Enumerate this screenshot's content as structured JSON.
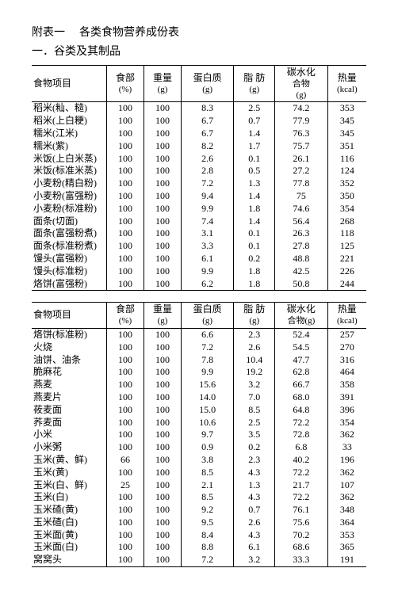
{
  "title1": "附表一",
  "title2": "各类食物营养成份表",
  "subtitle": "一．谷类及其制品",
  "columns1": [
    {
      "l1": "食物项目",
      "l2": ""
    },
    {
      "l1": "食部",
      "l2": "(%)"
    },
    {
      "l1": "重量",
      "l2": "(g)"
    },
    {
      "l1": "蛋白质",
      "l2": "(g)"
    },
    {
      "l1": "脂 肪",
      "l2": "(g)"
    },
    {
      "l1": "碳水化",
      "l2": "合物",
      "l3": "(g)"
    },
    {
      "l1": "热量",
      "l2": "(kcal)"
    }
  ],
  "columns2": [
    {
      "l1": "食物项目",
      "l2": ""
    },
    {
      "l1": "食部",
      "l2": "(%)"
    },
    {
      "l1": "重量",
      "l2": "(g)"
    },
    {
      "l1": "蛋白质",
      "l2": "(g)"
    },
    {
      "l1": "脂 肪",
      "l2": "(g)"
    },
    {
      "l1": "碳水化",
      "l2": "合物(g)"
    },
    {
      "l1": "热量",
      "l2": "(kcal)"
    }
  ],
  "rows1": [
    [
      "稻米(籼、糙)",
      "100",
      "100",
      "8.3",
      "2.5",
      "74.2",
      "353"
    ],
    [
      "稻米(上白粳)",
      "100",
      "100",
      "6.7",
      "0.7",
      "77.9",
      "345"
    ],
    [
      "糯米(江米)",
      "100",
      "100",
      "6.7",
      "1.4",
      "76.3",
      "345"
    ],
    [
      "糯米(紫)",
      "100",
      "100",
      "8.2",
      "1.7",
      "75.7",
      "351"
    ],
    [
      "米饭(上白米蒸)",
      "100",
      "100",
      "2.6",
      "0.1",
      "26.1",
      "116"
    ],
    [
      "米饭(标准米蒸)",
      "100",
      "100",
      "2.8",
      "0.5",
      "27.2",
      "124"
    ],
    [
      "小麦粉(精白粉)",
      "100",
      "100",
      "7.2",
      "1.3",
      "77.8",
      "352"
    ],
    [
      "小麦粉(富强粉)",
      "100",
      "100",
      "9.4",
      "1.4",
      "75",
      "350"
    ],
    [
      "小麦粉(标准粉)",
      "100",
      "100",
      "9.9",
      "1.8",
      "74.6",
      "354"
    ],
    [
      "面条(切面)",
      "100",
      "100",
      "7.4",
      "1.4",
      "56.4",
      "268"
    ],
    [
      "面条(富强粉煮)",
      "100",
      "100",
      "3.1",
      "0.1",
      "26.3",
      "118"
    ],
    [
      "面条(标准粉煮)",
      "100",
      "100",
      "3.3",
      "0.1",
      "27.8",
      "125"
    ],
    [
      "馒头(富强粉)",
      "100",
      "100",
      "6.1",
      "0.2",
      "48.8",
      "221"
    ],
    [
      "馒头(标准粉)",
      "100",
      "100",
      "9.9",
      "1.8",
      "42.5",
      "226"
    ],
    [
      "烙饼(富强粉)",
      "100",
      "100",
      "6.2",
      "1.8",
      "50.8",
      "244"
    ]
  ],
  "rows2": [
    [
      "烙饼(标准粉)",
      "100",
      "100",
      "6.6",
      "2.3",
      "52.4",
      "257"
    ],
    [
      "火烧",
      "100",
      "100",
      "7.2",
      "2.6",
      "54.5",
      "270"
    ],
    [
      "油饼、油条",
      "100",
      "100",
      "7.8",
      "10.4",
      "47.7",
      "316"
    ],
    [
      "脆麻花",
      "100",
      "100",
      "9.9",
      "19.2",
      "62.8",
      "464"
    ],
    [
      "燕麦",
      "100",
      "100",
      "15.6",
      "3.2",
      "66.7",
      "358"
    ],
    [
      "燕麦片",
      "100",
      "100",
      "14.0",
      "7.0",
      "68.0",
      "391"
    ],
    [
      "莜麦面",
      "100",
      "100",
      "15.0",
      "8.5",
      "64.8",
      "396"
    ],
    [
      "荞麦面",
      "100",
      "100",
      "10.6",
      "2.5",
      "72.2",
      "354"
    ],
    [
      "小米",
      "100",
      "100",
      "9.7",
      "3.5",
      "72.8",
      "362"
    ],
    [
      "小米粥",
      "100",
      "100",
      "0.9",
      "0.2",
      "6.8",
      "33"
    ],
    [
      "玉米(黄、鲜)",
      "66",
      "100",
      "3.8",
      "2.3",
      "40.2",
      "196"
    ],
    [
      "玉米(黄)",
      "100",
      "100",
      "8.5",
      "4.3",
      "72.2",
      "362"
    ],
    [
      "玉米(白、鲜)",
      "25",
      "100",
      "2.1",
      "1.3",
      "21.7",
      "107"
    ],
    [
      "玉米(白)",
      "100",
      "100",
      "8.5",
      "4.3",
      "72.2",
      "362"
    ],
    [
      "玉米碴(黄)",
      "100",
      "100",
      "9.2",
      "0.7",
      "76.1",
      "348"
    ],
    [
      "玉米碴(白)",
      "100",
      "100",
      "9.5",
      "2.6",
      "75.6",
      "364"
    ],
    [
      "玉米面(黄)",
      "100",
      "100",
      "8.4",
      "4.3",
      "70.2",
      "353"
    ],
    [
      "玉米面(白)",
      "100",
      "100",
      "8.8",
      "6.1",
      "68.6",
      "365"
    ],
    [
      "窝窝头",
      "100",
      "100",
      "7.2",
      "3.2",
      "33.3",
      "191"
    ]
  ]
}
